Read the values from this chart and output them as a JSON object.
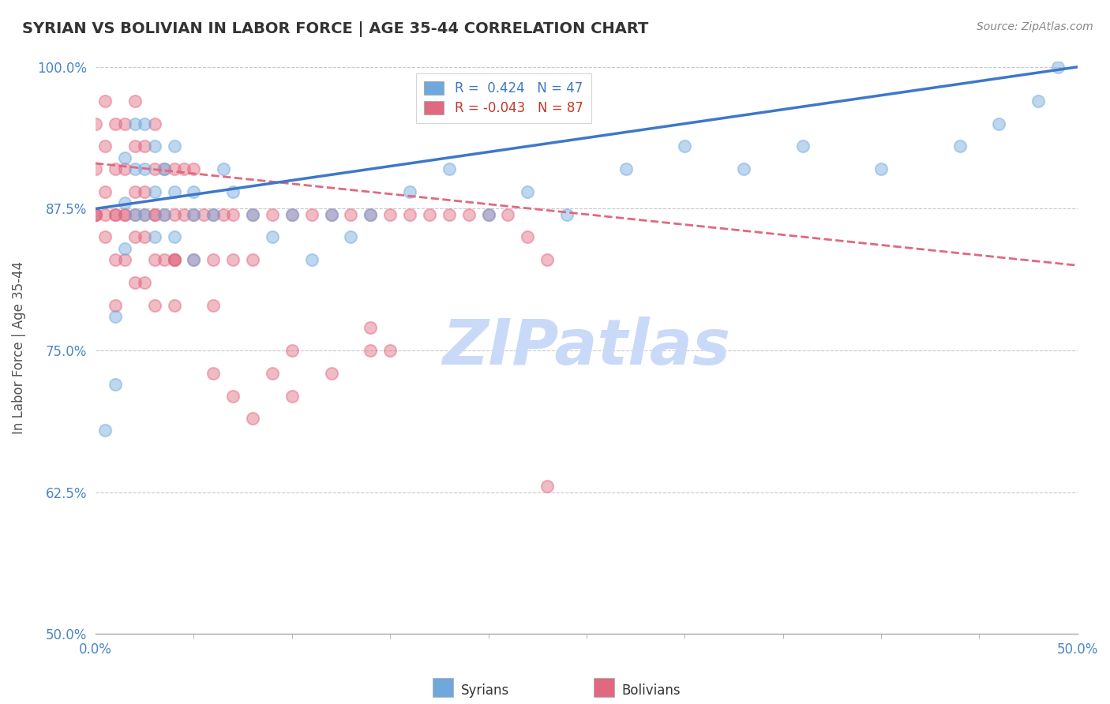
{
  "title": "SYRIAN VS BOLIVIAN IN LABOR FORCE | AGE 35-44 CORRELATION CHART",
  "source_text": "Source: ZipAtlas.com",
  "ylabel_text": "In Labor Force | Age 35-44",
  "xlim": [
    0.0,
    0.5
  ],
  "ylim": [
    0.5,
    1.005
  ],
  "ytick_values": [
    0.5,
    0.625,
    0.75,
    0.875,
    1.0
  ],
  "xtick_values": [
    0.0,
    0.5
  ],
  "xtick_minor_count": 9,
  "syrian_color": "#6fa8dc",
  "bolivian_color": "#e06880",
  "background_color": "#ffffff",
  "watermark_text": "ZIPatlas",
  "watermark_color": "#c9daf8",
  "grid_color": "#bbbbbb",
  "legend_text_blue": "R =  0.424   N = 47",
  "legend_text_pink": "R = -0.043   N = 87",
  "syrians_x": [
    0.005,
    0.01,
    0.01,
    0.015,
    0.015,
    0.015,
    0.02,
    0.02,
    0.02,
    0.025,
    0.025,
    0.025,
    0.03,
    0.03,
    0.03,
    0.035,
    0.035,
    0.04,
    0.04,
    0.04,
    0.05,
    0.05,
    0.05,
    0.06,
    0.065,
    0.07,
    0.08,
    0.09,
    0.1,
    0.11,
    0.12,
    0.13,
    0.14,
    0.16,
    0.18,
    0.2,
    0.22,
    0.24,
    0.27,
    0.3,
    0.33,
    0.36,
    0.4,
    0.44,
    0.46,
    0.48,
    0.49
  ],
  "syrians_y": [
    0.68,
    0.78,
    0.72,
    0.92,
    0.88,
    0.84,
    0.95,
    0.91,
    0.87,
    0.95,
    0.91,
    0.87,
    0.93,
    0.89,
    0.85,
    0.91,
    0.87,
    0.93,
    0.89,
    0.85,
    0.89,
    0.87,
    0.83,
    0.87,
    0.91,
    0.89,
    0.87,
    0.85,
    0.87,
    0.83,
    0.87,
    0.85,
    0.87,
    0.89,
    0.91,
    0.87,
    0.89,
    0.87,
    0.91,
    0.93,
    0.91,
    0.93,
    0.91,
    0.93,
    0.95,
    0.97,
    1.0
  ],
  "bolivians_x": [
    0.0,
    0.0,
    0.0,
    0.005,
    0.005,
    0.005,
    0.005,
    0.01,
    0.01,
    0.01,
    0.01,
    0.01,
    0.015,
    0.015,
    0.015,
    0.015,
    0.02,
    0.02,
    0.02,
    0.02,
    0.02,
    0.025,
    0.025,
    0.025,
    0.025,
    0.03,
    0.03,
    0.03,
    0.03,
    0.03,
    0.035,
    0.035,
    0.035,
    0.04,
    0.04,
    0.04,
    0.04,
    0.045,
    0.045,
    0.05,
    0.05,
    0.05,
    0.055,
    0.06,
    0.06,
    0.065,
    0.07,
    0.07,
    0.08,
    0.08,
    0.09,
    0.1,
    0.11,
    0.12,
    0.13,
    0.14,
    0.15,
    0.16,
    0.17,
    0.18,
    0.19,
    0.2,
    0.21,
    0.22,
    0.23,
    0.14,
    0.15,
    0.09,
    0.1,
    0.06,
    0.07,
    0.04,
    0.03,
    0.025,
    0.02,
    0.015,
    0.01,
    0.005,
    0.0,
    0.0,
    0.04,
    0.06,
    0.08,
    0.1,
    0.12,
    0.14,
    0.23
  ],
  "bolivians_y": [
    0.95,
    0.91,
    0.87,
    0.97,
    0.93,
    0.89,
    0.85,
    0.95,
    0.91,
    0.87,
    0.83,
    0.79,
    0.95,
    0.91,
    0.87,
    0.83,
    0.97,
    0.93,
    0.89,
    0.85,
    0.81,
    0.93,
    0.89,
    0.85,
    0.81,
    0.95,
    0.91,
    0.87,
    0.83,
    0.79,
    0.91,
    0.87,
    0.83,
    0.91,
    0.87,
    0.83,
    0.79,
    0.91,
    0.87,
    0.91,
    0.87,
    0.83,
    0.87,
    0.87,
    0.83,
    0.87,
    0.87,
    0.83,
    0.87,
    0.83,
    0.87,
    0.87,
    0.87,
    0.87,
    0.87,
    0.87,
    0.87,
    0.87,
    0.87,
    0.87,
    0.87,
    0.87,
    0.87,
    0.85,
    0.83,
    0.77,
    0.75,
    0.73,
    0.75,
    0.73,
    0.71,
    0.83,
    0.87,
    0.87,
    0.87,
    0.87,
    0.87,
    0.87,
    0.87,
    0.87,
    0.83,
    0.79,
    0.69,
    0.71,
    0.73,
    0.75,
    0.63
  ]
}
